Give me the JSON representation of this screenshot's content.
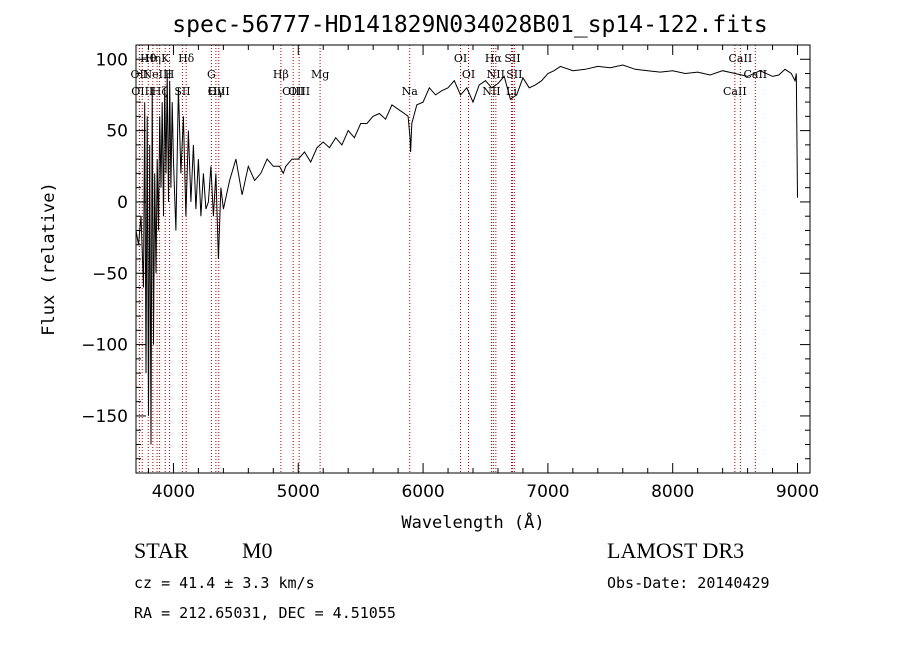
{
  "chart_data": {
    "type": "line",
    "title": "spec-56777-HD141829N034028B01_sp14-122.fits",
    "xlabel": "Wavelength (Å)",
    "ylabel": "Flux (relative)",
    "xlim": [
      3700,
      9100
    ],
    "ylim": [
      -190,
      110
    ],
    "xticks": [
      4000,
      5000,
      6000,
      7000,
      8000,
      9000
    ],
    "xtick_labels": [
      "4000",
      "5000",
      "6000",
      "7000",
      "8000",
      "9000"
    ],
    "yticks": [
      -150,
      -100,
      -50,
      0,
      50,
      100
    ],
    "ytick_labels": [
      "−150",
      "−100",
      "−50",
      "0",
      "50",
      "100"
    ],
    "series": [
      {
        "name": "flux",
        "x": [
          3700,
          3720,
          3740,
          3760,
          3770,
          3780,
          3790,
          3800,
          3810,
          3820,
          3830,
          3840,
          3850,
          3860,
          3870,
          3880,
          3890,
          3900,
          3910,
          3920,
          3930,
          3940,
          3950,
          3960,
          3970,
          3980,
          3990,
          4000,
          4020,
          4040,
          4060,
          4080,
          4100,
          4120,
          4140,
          4160,
          4180,
          4200,
          4220,
          4240,
          4260,
          4280,
          4300,
          4320,
          4340,
          4360,
          4380,
          4400,
          4450,
          4500,
          4550,
          4600,
          4650,
          4700,
          4750,
          4800,
          4850,
          4880,
          4900,
          4950,
          5000,
          5050,
          5100,
          5150,
          5200,
          5250,
          5300,
          5350,
          5400,
          5450,
          5500,
          5550,
          5600,
          5650,
          5700,
          5750,
          5800,
          5850,
          5880,
          5895,
          5900,
          5910,
          5950,
          6000,
          6050,
          6100,
          6150,
          6200,
          6250,
          6300,
          6350,
          6400,
          6450,
          6500,
          6550,
          6600,
          6650,
          6700,
          6750,
          6800,
          6850,
          6900,
          6950,
          7000,
          7050,
          7100,
          7200,
          7300,
          7400,
          7500,
          7600,
          7700,
          7800,
          7900,
          8000,
          8100,
          8200,
          8300,
          8400,
          8500,
          8600,
          8700,
          8800,
          8850,
          8900,
          8950,
          8980,
          8990,
          9000
        ],
        "y": [
          -20,
          -30,
          -10,
          -60,
          70,
          -120,
          60,
          -150,
          40,
          -170,
          80,
          -100,
          20,
          -50,
          30,
          -20,
          60,
          10,
          70,
          -10,
          80,
          20,
          90,
          0,
          85,
          10,
          70,
          30,
          -20,
          80,
          20,
          60,
          -10,
          50,
          0,
          40,
          -5,
          30,
          -10,
          20,
          -5,
          0,
          25,
          -10,
          20,
          -40,
          10,
          -5,
          15,
          30,
          5,
          25,
          15,
          20,
          30,
          25,
          25,
          20,
          25,
          30,
          30,
          35,
          28,
          38,
          42,
          38,
          45,
          40,
          50,
          45,
          55,
          55,
          60,
          62,
          58,
          68,
          65,
          62,
          60,
          45,
          35,
          55,
          68,
          70,
          80,
          75,
          78,
          80,
          85,
          75,
          80,
          70,
          82,
          85,
          80,
          83,
          88,
          72,
          75,
          87,
          80,
          82,
          85,
          90,
          92,
          95,
          92,
          93,
          95,
          94,
          96,
          93,
          92,
          91,
          92,
          90,
          91,
          89,
          92,
          90,
          88,
          92,
          88,
          89,
          93,
          90,
          85,
          90,
          3
        ]
      }
    ],
    "spectral_lines": [
      {
        "wavelength": 3727,
        "label": "OII"
      },
      {
        "wavelength": 3750,
        "label": "OIII"
      },
      {
        "wavelength": 3798,
        "label": "Hθ"
      },
      {
        "wavelength": 3835,
        "label": "Hη"
      },
      {
        "wavelength": 3869,
        "label": "NeIII"
      },
      {
        "wavelength": 3889,
        "label": "Hζ"
      },
      {
        "wavelength": 3934,
        "label": "K"
      },
      {
        "wavelength": 3969,
        "label": "H"
      },
      {
        "wavelength": 4072,
        "label": "SII"
      },
      {
        "wavelength": 4102,
        "label": "Hδ"
      },
      {
        "wavelength": 4304,
        "label": "G"
      },
      {
        "wavelength": 4340,
        "label": "Hγ"
      },
      {
        "wavelength": 4363,
        "label": "OIII"
      },
      {
        "wavelength": 4861,
        "label": "Hβ"
      },
      {
        "wavelength": 4959,
        "label": "OIII"
      },
      {
        "wavelength": 5007,
        "label": "OIII"
      },
      {
        "wavelength": 5175,
        "label": "Mg"
      },
      {
        "wavelength": 5893,
        "label": "Na"
      },
      {
        "wavelength": 6300,
        "label": "OI"
      },
      {
        "wavelength": 6364,
        "label": "OI"
      },
      {
        "wavelength": 6548,
        "label": "NII"
      },
      {
        "wavelength": 6563,
        "label": "Hα"
      },
      {
        "wavelength": 6583,
        "label": "NII"
      },
      {
        "wavelength": 6708,
        "label": "Li"
      },
      {
        "wavelength": 6716,
        "label": "SII"
      },
      {
        "wavelength": 6731,
        "label": "SII"
      },
      {
        "wavelength": 8498,
        "label": "CaII"
      },
      {
        "wavelength": 8542,
        "label": "CaII"
      },
      {
        "wavelength": 8662,
        "label": "CaII"
      }
    ],
    "line_label_rows": [
      {
        "label": "Hθ",
        "row": 0
      },
      {
        "label": "OII",
        "row": 1
      },
      {
        "label": "OIII",
        "row": 2
      }
    ],
    "info": {
      "class_label": "STAR",
      "subclass": "M0",
      "survey": "LAMOST DR3",
      "cz": "cz = 41.4 ± 3.3 km/s",
      "obs_date": "Obs-Date: 20140429",
      "coords": "RA = 212.65031, DEC =   4.51055"
    },
    "colors": {
      "axis": "#000000",
      "spectrum": "#000000",
      "line_marker": "#b00000"
    }
  }
}
